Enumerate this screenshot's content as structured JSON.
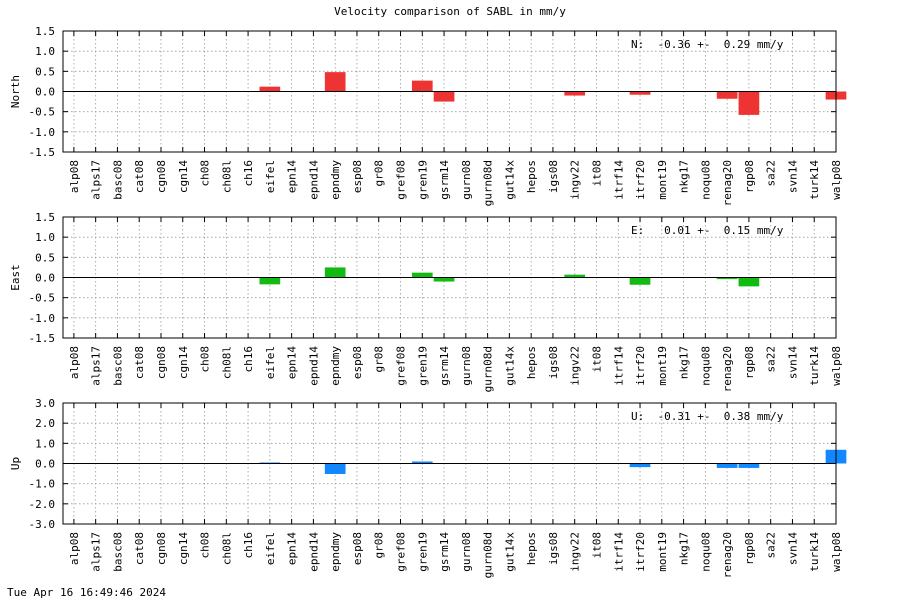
{
  "title": "Velocity comparison of SABL in mm/y",
  "timestamp": "Tue Apr 16 16:49:46 2024",
  "chart_data": [
    {
      "type": "bar",
      "ylabel": "North",
      "ylim": [
        -1.5,
        1.5
      ],
      "yticks": [
        -1.5,
        -1.0,
        -0.5,
        0.0,
        0.5,
        1.0,
        1.5
      ],
      "ytick_labels": [
        "-1.5",
        "-1.0",
        "-0.5",
        "0.0",
        "0.5",
        "1.0",
        "1.5"
      ],
      "grid": true,
      "color": "#ee3333",
      "annotation": "N:  -0.36 +-  0.29 mm/y",
      "categories": [
        "alp08",
        "alps17",
        "basc08",
        "cat08",
        "cgn08",
        "cgn14",
        "ch08",
        "ch08l",
        "ch16",
        "eifel",
        "epn14",
        "epnd14",
        "epndmy",
        "esp08",
        "gr08",
        "gref08",
        "gren19",
        "gsrm14",
        "gurn08",
        "gurn08d",
        "gut14x",
        "hepos",
        "igs08",
        "ingv22",
        "it08",
        "itrf14",
        "itrf20",
        "mont19",
        "nkg17",
        "noqu08",
        "renag20",
        "rgp08",
        "sa22",
        "svn14",
        "turk14",
        "walp08"
      ],
      "values": [
        0,
        0,
        0,
        0,
        0,
        0,
        0,
        0,
        0,
        0.12,
        0,
        0,
        0.48,
        0,
        0,
        0,
        0.27,
        -0.25,
        0,
        0,
        0,
        0,
        0,
        -0.1,
        0,
        0,
        -0.08,
        0,
        0,
        0,
        -0.18,
        -0.58,
        0,
        0,
        0,
        -0.2
      ]
    },
    {
      "type": "bar",
      "ylabel": "East",
      "ylim": [
        -1.5,
        1.5
      ],
      "yticks": [
        -1.5,
        -1.0,
        -0.5,
        0.0,
        0.5,
        1.0,
        1.5
      ],
      "ytick_labels": [
        "-1.5",
        "-1.0",
        "-0.5",
        "0.0",
        "0.5",
        "1.0",
        "1.5"
      ],
      "grid": true,
      "color": "#11bb11",
      "annotation": "E:   0.01 +-  0.15 mm/y",
      "categories": [
        "alp08",
        "alps17",
        "basc08",
        "cat08",
        "cgn08",
        "cgn14",
        "ch08",
        "ch08l",
        "ch16",
        "eifel",
        "epn14",
        "epnd14",
        "epndmy",
        "esp08",
        "gr08",
        "gref08",
        "gren19",
        "gsrm14",
        "gurn08",
        "gurn08d",
        "gut14x",
        "hepos",
        "igs08",
        "ingv22",
        "it08",
        "itrf14",
        "itrf20",
        "mont19",
        "nkg17",
        "noqu08",
        "renag20",
        "rgp08",
        "sa22",
        "svn14",
        "turk14",
        "walp08"
      ],
      "values": [
        0,
        0,
        0,
        0,
        0,
        0,
        0,
        0,
        0,
        -0.17,
        0,
        0,
        0.25,
        0,
        0,
        0,
        0.12,
        -0.1,
        0,
        0,
        0,
        0,
        0,
        0.07,
        0,
        0,
        -0.18,
        0,
        0,
        0,
        -0.04,
        -0.22,
        0,
        0,
        0,
        0
      ]
    },
    {
      "type": "bar",
      "ylabel": "Up",
      "ylim": [
        -3.0,
        3.0
      ],
      "yticks": [
        -3.0,
        -2.0,
        -1.0,
        0.0,
        1.0,
        2.0,
        3.0
      ],
      "ytick_labels": [
        "-3.0",
        "-2.0",
        "-1.0",
        "0.0",
        "1.0",
        "2.0",
        "3.0"
      ],
      "grid": true,
      "color": "#1188ff",
      "annotation": "U:  -0.31 +-  0.38 mm/y",
      "categories": [
        "alp08",
        "alps17",
        "basc08",
        "cat08",
        "cgn08",
        "cgn14",
        "ch08",
        "ch08l",
        "ch16",
        "eifel",
        "epn14",
        "epnd14",
        "epndmy",
        "esp08",
        "gr08",
        "gref08",
        "gren19",
        "gsrm14",
        "gurn08",
        "gurn08d",
        "gut14x",
        "hepos",
        "igs08",
        "ingv22",
        "it08",
        "itrf14",
        "itrf20",
        "mont19",
        "nkg17",
        "noqu08",
        "renag20",
        "rgp08",
        "sa22",
        "svn14",
        "turk14",
        "walp08"
      ],
      "values": [
        0,
        0,
        0,
        0,
        0,
        0,
        0,
        0,
        0,
        0.05,
        0,
        0,
        -0.52,
        0,
        0,
        0,
        0.1,
        0,
        0,
        0,
        0,
        0,
        0,
        0,
        0,
        0,
        -0.18,
        0,
        0,
        0,
        -0.22,
        -0.22,
        0,
        0,
        0,
        0.68
      ]
    }
  ]
}
